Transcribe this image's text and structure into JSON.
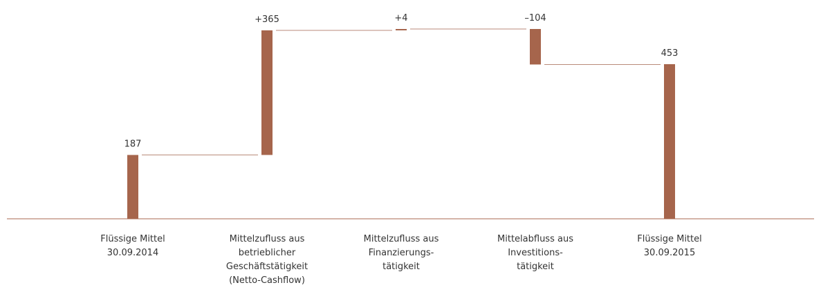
{
  "chart_data": {
    "type": "waterfall",
    "categories": [
      "Flüssige Mittel\n30.09.2014",
      "Mittelzufluss aus\nbetrieblicher\nGeschäftstätigkeit\n(Netto-Cashflow)",
      "Mittelzufluss aus\nFinanzierungs-\ntätigkeit",
      "Mittelabfluss aus\nInvestitions-\ntätigkeit",
      "Flüssige Mittel\n30.09.2015"
    ],
    "values": [
      187,
      365,
      4,
      -104,
      453
    ],
    "value_labels": [
      "187",
      "+365",
      "+4",
      "–104",
      "453"
    ],
    "totals": [
      true,
      false,
      false,
      false,
      true
    ],
    "color": "#a6654c"
  }
}
